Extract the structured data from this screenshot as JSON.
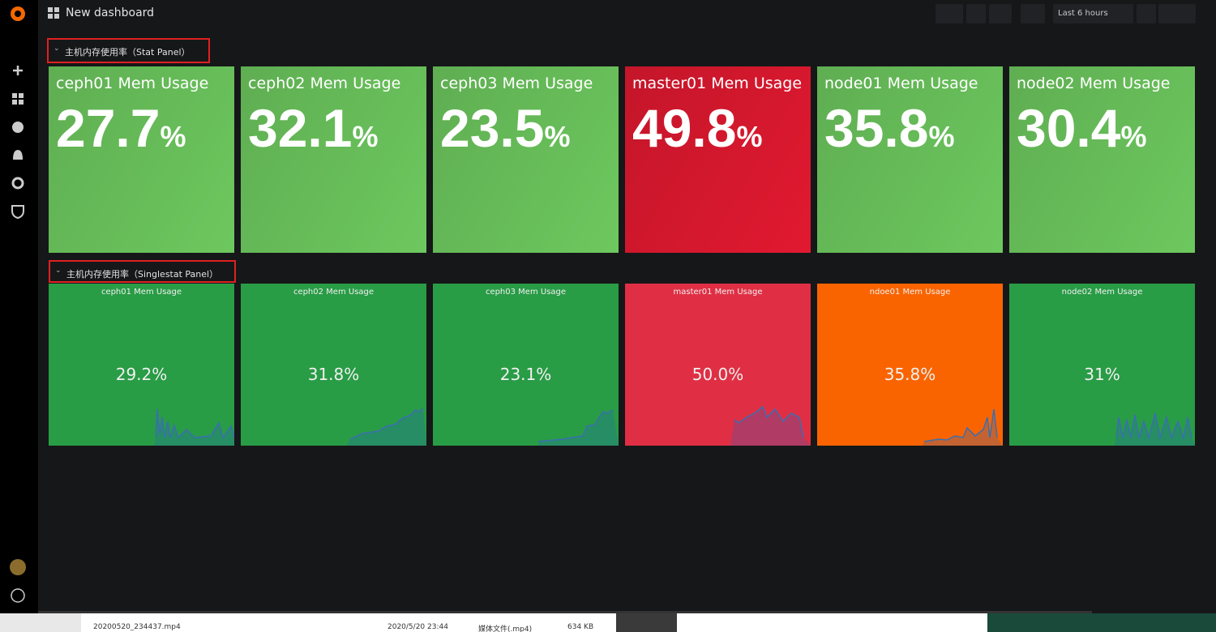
{
  "header": {
    "title": "New dashboard",
    "time_range": "Last 6 hours"
  },
  "rows": [
    {
      "title": "主机内存使用率（Stat Panel）",
      "panels": [
        {
          "title": "ceph01 Mem Usage",
          "value": "27.7",
          "unit": "%",
          "color": "#5fae52"
        },
        {
          "title": "ceph02 Mem Usage",
          "value": "32.1",
          "unit": "%",
          "color": "#5fae52"
        },
        {
          "title": "ceph03 Mem Usage",
          "value": "23.5",
          "unit": "%",
          "color": "#5fae52"
        },
        {
          "title": "master01 Mem Usage",
          "value": "49.8",
          "unit": "%",
          "color": "#c4162a"
        },
        {
          "title": "node01 Mem Usage",
          "value": "35.8",
          "unit": "%",
          "color": "#5fae52"
        },
        {
          "title": "node02 Mem Usage",
          "value": "30.4",
          "unit": "%",
          "color": "#5fae52"
        }
      ]
    },
    {
      "title": "主机内存使用率（Singlestat Panel）",
      "panels": [
        {
          "title": "ceph01 Mem Usage",
          "value": "29.2%",
          "color": "#299c46"
        },
        {
          "title": "ceph02 Mem Usage",
          "value": "31.8%",
          "color": "#299c46"
        },
        {
          "title": "ceph03 Mem Usage",
          "value": "23.1%",
          "color": "#299c46"
        },
        {
          "title": "master01 Mem Usage",
          "value": "50.0%",
          "color": "#e02f44"
        },
        {
          "title": "ndoe01 Mem Usage",
          "value": "35.8%",
          "color": "#fa6400"
        },
        {
          "title": "node02 Mem Usage",
          "value": "31%",
          "color": "#299c46"
        }
      ]
    }
  ],
  "taskbar": {
    "file": "20200520_234437.mp4",
    "date": "2020/5/20 23:44",
    "kind": "媒体文件(.mp4)",
    "size": "634 KB"
  }
}
